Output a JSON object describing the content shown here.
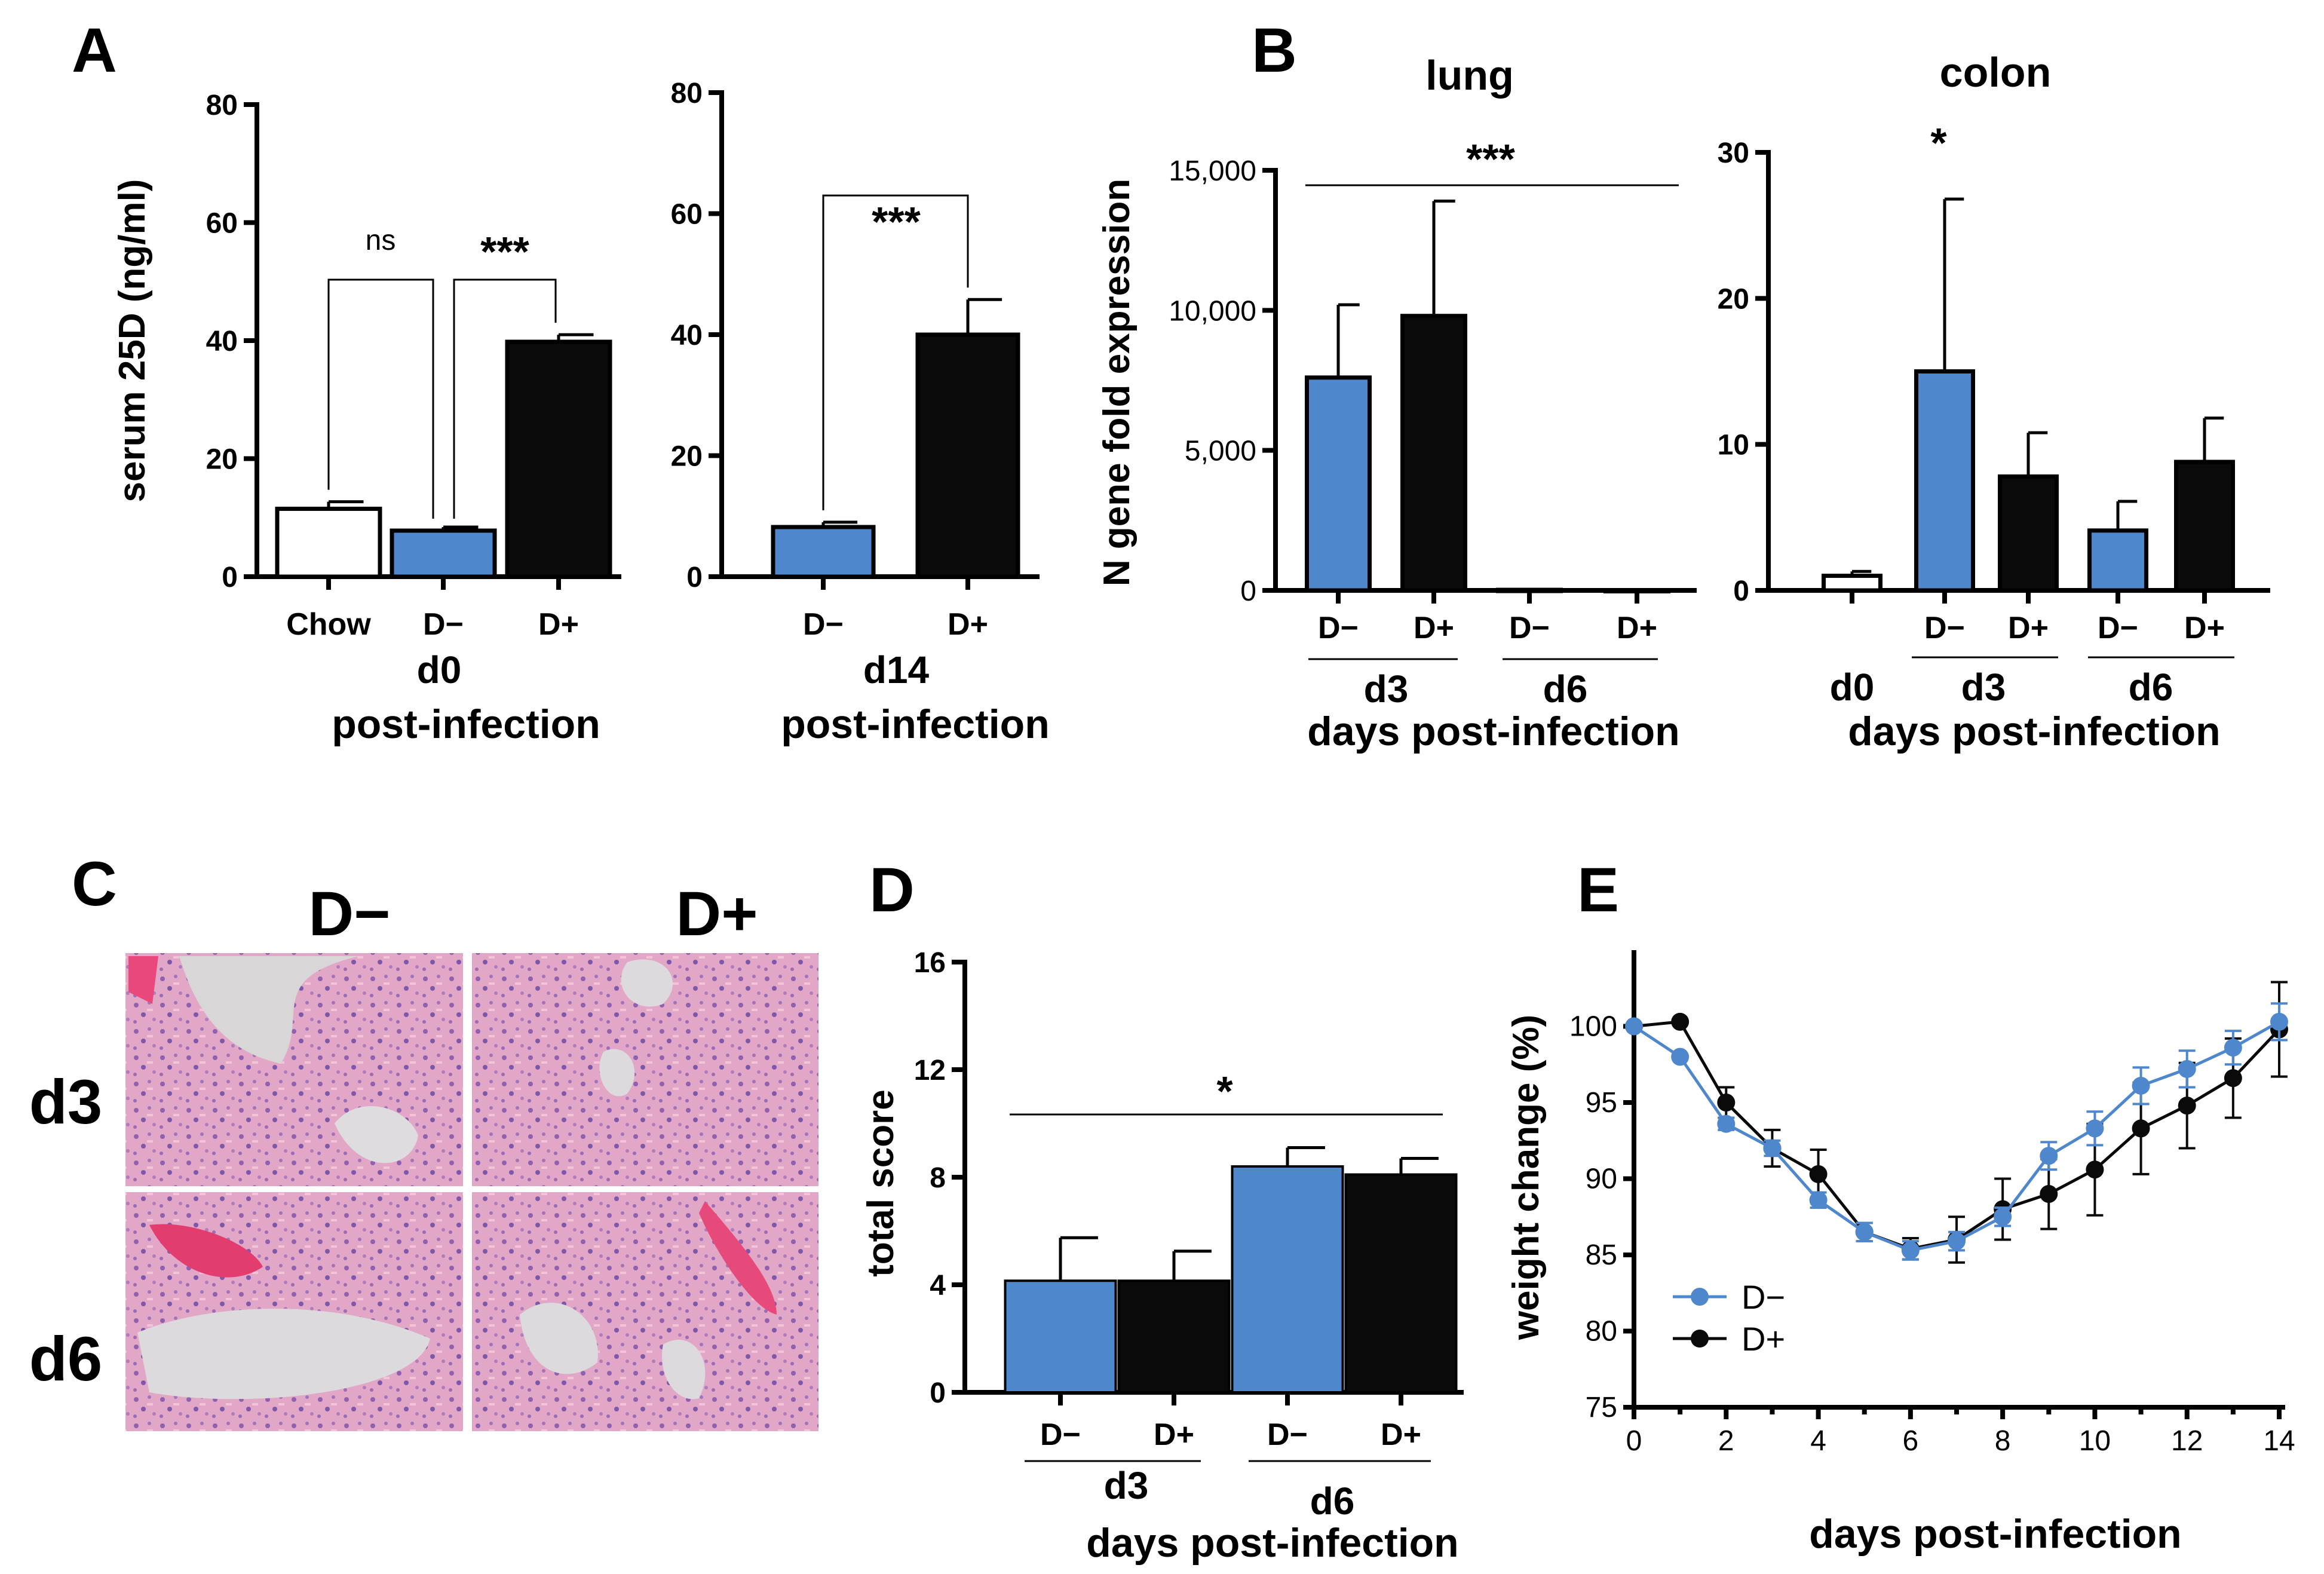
{
  "panels": {
    "A": "A",
    "B": "B",
    "C": "C",
    "D": "D",
    "E": "E"
  },
  "colors": {
    "d_minus": "#4f87cc",
    "d_plus": "#0a0a0a",
    "chow": "#ffffff"
  },
  "chart_data": [
    {
      "id": "A1",
      "type": "bar",
      "ylabel": "serum 25D (ng/ml)",
      "ylim": [
        0,
        80
      ],
      "yticks": [
        0,
        20,
        40,
        60,
        80
      ],
      "categories": [
        "Chow",
        "D−",
        "D+"
      ],
      "values": [
        11.5,
        7.8,
        39.8
      ],
      "errors": [
        1.2,
        0.6,
        1.2
      ],
      "fills": [
        "chow",
        "d_minus",
        "d_plus"
      ],
      "group_labels": [
        "d0",
        "post-infection"
      ],
      "annotations": [
        {
          "text": "ns",
          "from": 0,
          "to": 1
        },
        {
          "text": "***",
          "from": 1,
          "to": 2
        }
      ]
    },
    {
      "id": "A2",
      "type": "bar",
      "ylim": [
        0,
        80
      ],
      "yticks": [
        0,
        20,
        40,
        60,
        80
      ],
      "categories": [
        "D−",
        "D+"
      ],
      "values": [
        8.2,
        40
      ],
      "errors": [
        0.8,
        5.8
      ],
      "fills": [
        "d_minus",
        "d_plus"
      ],
      "group_labels": [
        "d14",
        "post-infection"
      ],
      "annotations": [
        {
          "text": "***",
          "from": 0,
          "to": 1
        }
      ]
    },
    {
      "id": "B1",
      "type": "bar",
      "title": "lung",
      "ylabel": "N gene fold expression",
      "ylim": [
        0,
        15000
      ],
      "yticks": [
        0,
        5000,
        10000,
        15000
      ],
      "ytick_labels": [
        "0",
        "5,000",
        "10,000",
        "15,000"
      ],
      "categories": [
        "D−",
        "D+",
        "D−",
        "D+"
      ],
      "values": [
        7600,
        9800,
        20,
        10
      ],
      "errors": [
        2600,
        4100,
        0,
        0
      ],
      "fills": [
        "d_minus",
        "d_plus",
        "d_minus",
        "d_plus"
      ],
      "groups": [
        "d3",
        "d6"
      ],
      "xlabel": "days post-infection",
      "annotation": "***"
    },
    {
      "id": "B2",
      "type": "bar",
      "title": "colon",
      "ylim": [
        0,
        30
      ],
      "yticks": [
        0,
        10,
        20,
        30
      ],
      "categories": [
        "",
        "D−",
        "D+",
        "D−",
        "D+"
      ],
      "values": [
        1,
        15,
        7.8,
        4.1,
        8.8
      ],
      "errors": [
        0.3,
        11.8,
        3,
        2,
        3
      ],
      "fills": [
        "chow",
        "d_minus",
        "d_plus",
        "d_minus",
        "d_plus"
      ],
      "groups": [
        "d0",
        "d3",
        "d6"
      ],
      "xlabel": "days post-infection",
      "annotation": "*"
    },
    {
      "id": "D",
      "type": "bar",
      "ylabel": "total score",
      "ylim": [
        0,
        16
      ],
      "yticks": [
        0,
        4,
        8,
        12,
        16
      ],
      "categories": [
        "D−",
        "D+",
        "D−",
        "D+"
      ],
      "values": [
        4.15,
        4.15,
        8.4,
        8.1
      ],
      "errors": [
        1.6,
        1.1,
        0.7,
        0.6
      ],
      "fills": [
        "d_minus",
        "d_plus",
        "d_minus",
        "d_plus"
      ],
      "groups": [
        "d3",
        "d6"
      ],
      "xlabel": "days post-infection",
      "annotation": "*"
    },
    {
      "id": "E",
      "type": "line",
      "ylabel": "weight change (%)",
      "xlabel": "days post-infection",
      "xlim": [
        0,
        14
      ],
      "ylim": [
        75,
        105
      ],
      "xticks": [
        0,
        2,
        4,
        6,
        8,
        10,
        12,
        14
      ],
      "yticks": [
        75,
        80,
        85,
        90,
        95,
        100
      ],
      "x": [
        0,
        1,
        2,
        3,
        4,
        5,
        6,
        7,
        8,
        9,
        10,
        11,
        12,
        13,
        14
      ],
      "series": [
        {
          "name": "D−",
          "color": "d_minus",
          "values": [
            100,
            98,
            93.6,
            92,
            88.6,
            86.5,
            85.3,
            85.9,
            87.5,
            91.5,
            93.3,
            96.1,
            97.2,
            98.6,
            100.3
          ],
          "errors": [
            0,
            0,
            0.4,
            0.5,
            0.5,
            0.6,
            0.6,
            0.6,
            0.6,
            0.9,
            1.1,
            1.2,
            1.2,
            1.1,
            1.2
          ]
        },
        {
          "name": "D+",
          "color": "d_plus",
          "values": [
            100,
            100.3,
            95,
            92,
            90.3,
            86.5,
            85.4,
            86,
            88,
            89,
            90.6,
            93.3,
            94.8,
            96.6,
            99.8
          ],
          "errors": [
            0,
            0,
            1,
            1.2,
            1.6,
            0.6,
            0.7,
            1.5,
            2,
            2.3,
            3,
            3,
            2.8,
            2.6,
            3.1
          ]
        }
      ]
    }
  ],
  "C": {
    "columns": [
      "D−",
      "D+"
    ],
    "rows": [
      "d3",
      "d6"
    ]
  }
}
